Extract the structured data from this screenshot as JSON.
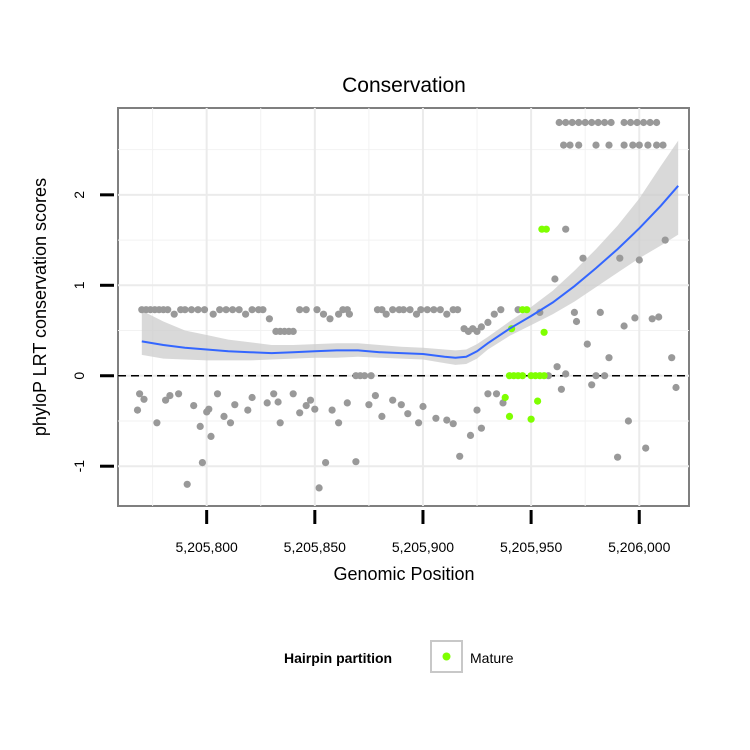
{
  "chart_data": {
    "type": "scatter",
    "title": "Conservation",
    "xlabel": "Genomic Position",
    "ylabel": "phyloP LRT conservation scores",
    "xlim": [
      5205759,
      5206023
    ],
    "ylim": [
      -1.44,
      2.96
    ],
    "x_ticks": [
      5205800,
      5205850,
      5205900,
      5205950,
      5206000
    ],
    "x_tick_labels": [
      "5,205,800",
      "5,205,850",
      "5,205,900",
      "5,205,950",
      "5,206,000"
    ],
    "y_ticks": [
      -1,
      0,
      1,
      2
    ],
    "y_tick_labels": [
      "-1",
      "0",
      "1",
      "2"
    ],
    "grid": true,
    "reference_line": {
      "y": 0,
      "style": "dashed"
    },
    "legend": {
      "title": "Hairpin partition",
      "placement": "bottom",
      "entries": [
        {
          "label": "Mature",
          "color": "#7FFF00"
        }
      ]
    },
    "colors": {
      "other": "#999999",
      "mature": "#7FFF00",
      "smooth": "#3366FF",
      "band": "#cccccc"
    },
    "series": [
      {
        "role": "other",
        "points": [
          [
            5205770,
            0.73
          ],
          [
            5205772,
            0.73
          ],
          [
            5205774,
            0.73
          ],
          [
            5205776,
            0.73
          ],
          [
            5205778,
            0.73
          ],
          [
            5205780,
            0.73
          ],
          [
            5205782,
            0.73
          ],
          [
            5205785,
            0.68
          ],
          [
            5205788,
            0.73
          ],
          [
            5205790,
            0.73
          ],
          [
            5205793,
            0.73
          ],
          [
            5205796,
            0.73
          ],
          [
            5205799,
            0.73
          ],
          [
            5205803,
            0.68
          ],
          [
            5205806,
            0.73
          ],
          [
            5205809,
            0.73
          ],
          [
            5205812,
            0.73
          ],
          [
            5205815,
            0.73
          ],
          [
            5205818,
            0.68
          ],
          [
            5205821,
            0.73
          ],
          [
            5205824,
            0.73
          ],
          [
            5205826,
            0.73
          ],
          [
            5205829,
            0.63
          ],
          [
            5205832,
            0.49
          ],
          [
            5205834,
            0.49
          ],
          [
            5205836,
            0.49
          ],
          [
            5205838,
            0.49
          ],
          [
            5205840,
            0.49
          ],
          [
            5205843,
            0.73
          ],
          [
            5205846,
            0.73
          ],
          [
            5205851,
            0.73
          ],
          [
            5205854,
            0.68
          ],
          [
            5205857,
            0.63
          ],
          [
            5205861,
            0.68
          ],
          [
            5205863,
            0.73
          ],
          [
            5205865,
            0.73
          ],
          [
            5205866,
            0.68
          ],
          [
            5205869,
            0.0
          ],
          [
            5205871,
            0.0
          ],
          [
            5205873,
            0.0
          ],
          [
            5205876,
            0.0
          ],
          [
            5205879,
            0.73
          ],
          [
            5205881,
            0.73
          ],
          [
            5205883,
            0.68
          ],
          [
            5205886,
            0.73
          ],
          [
            5205889,
            0.73
          ],
          [
            5205891,
            0.73
          ],
          [
            5205894,
            0.73
          ],
          [
            5205897,
            0.68
          ],
          [
            5205899,
            0.73
          ],
          [
            5205902,
            0.73
          ],
          [
            5205905,
            0.73
          ],
          [
            5205908,
            0.73
          ],
          [
            5205911,
            0.68
          ],
          [
            5205914,
            0.73
          ],
          [
            5205916,
            0.73
          ],
          [
            5205919,
            0.52
          ],
          [
            5205921,
            0.49
          ],
          [
            5205923,
            0.52
          ],
          [
            5205925,
            0.49
          ],
          [
            5205927,
            0.54
          ],
          [
            5205930,
            0.59
          ],
          [
            5205933,
            0.68
          ],
          [
            5205936,
            0.73
          ],
          [
            5205944,
            0.73
          ],
          [
            5205954,
            0.7
          ],
          [
            5205961,
            1.07
          ],
          [
            5205966,
            1.62
          ],
          [
            5205970,
            0.7
          ],
          [
            5205769,
            -0.2
          ],
          [
            5205771,
            -0.26
          ],
          [
            5205768,
            -0.38
          ],
          [
            5205777,
            -0.52
          ],
          [
            5205781,
            -0.27
          ],
          [
            5205783,
            -0.22
          ],
          [
            5205787,
            -0.2
          ],
          [
            5205791,
            -1.2
          ],
          [
            5205794,
            -0.33
          ],
          [
            5205797,
            -0.56
          ],
          [
            5205798,
            -0.96
          ],
          [
            5205800,
            -0.4
          ],
          [
            5205801,
            -0.37
          ],
          [
            5205802,
            -0.67
          ],
          [
            5205805,
            -0.2
          ],
          [
            5205808,
            -0.45
          ],
          [
            5205811,
            -0.52
          ],
          [
            5205813,
            -0.32
          ],
          [
            5205819,
            -0.38
          ],
          [
            5205821,
            -0.24
          ],
          [
            5205828,
            -0.3
          ],
          [
            5205831,
            -0.2
          ],
          [
            5205833,
            -0.29
          ],
          [
            5205834,
            -0.52
          ],
          [
            5205840,
            -0.2
          ],
          [
            5205843,
            -0.41
          ],
          [
            5205846,
            -0.33
          ],
          [
            5205848,
            -0.27
          ],
          [
            5205850,
            -0.37
          ],
          [
            5205852,
            -1.24
          ],
          [
            5205855,
            -0.96
          ],
          [
            5205858,
            -0.38
          ],
          [
            5205861,
            -0.52
          ],
          [
            5205865,
            -0.3
          ],
          [
            5205869,
            -0.95
          ],
          [
            5205875,
            -0.32
          ],
          [
            5205878,
            -0.22
          ],
          [
            5205881,
            -0.45
          ],
          [
            5205886,
            -0.27
          ],
          [
            5205890,
            -0.32
          ],
          [
            5205893,
            -0.42
          ],
          [
            5205898,
            -0.52
          ],
          [
            5205900,
            -0.34
          ],
          [
            5205906,
            -0.47
          ],
          [
            5205911,
            -0.49
          ],
          [
            5205914,
            -0.53
          ],
          [
            5205917,
            -0.89
          ],
          [
            5205922,
            -0.66
          ],
          [
            5205925,
            -0.38
          ],
          [
            5205927,
            -0.58
          ],
          [
            5205930,
            -0.2
          ],
          [
            5205934,
            -0.2
          ],
          [
            5205937,
            -0.3
          ],
          [
            5205958,
            0.0
          ],
          [
            5205962,
            0.1
          ],
          [
            5205964,
            -0.15
          ],
          [
            5205966,
            0.02
          ],
          [
            5205971,
            0.6
          ],
          [
            5205974,
            1.3
          ],
          [
            5205976,
            0.35
          ],
          [
            5205978,
            -0.1
          ],
          [
            5205980,
            0.0
          ],
          [
            5205982,
            0.7
          ],
          [
            5205984,
            0.0
          ],
          [
            5205986,
            0.2
          ],
          [
            5205990,
            -0.9
          ],
          [
            5205991,
            1.3
          ],
          [
            5205993,
            0.55
          ],
          [
            5205995,
            -0.5
          ],
          [
            5205998,
            0.64
          ],
          [
            5206000,
            1.28
          ],
          [
            5206003,
            -0.8
          ],
          [
            5206006,
            0.63
          ],
          [
            5206009,
            0.65
          ],
          [
            5206012,
            1.5
          ],
          [
            5206015,
            0.2
          ],
          [
            5206017,
            -0.13
          ],
          [
            5205963,
            2.8
          ],
          [
            5205966,
            2.8
          ],
          [
            5205969,
            2.8
          ],
          [
            5205972,
            2.8
          ],
          [
            5205975,
            2.8
          ],
          [
            5205978,
            2.8
          ],
          [
            5205981,
            2.8
          ],
          [
            5205984,
            2.8
          ],
          [
            5205987,
            2.8
          ],
          [
            5205993,
            2.8
          ],
          [
            5205996,
            2.8
          ],
          [
            5205999,
            2.8
          ],
          [
            5206002,
            2.8
          ],
          [
            5206005,
            2.8
          ],
          [
            5206008,
            2.8
          ],
          [
            5205965,
            2.55
          ],
          [
            5205968,
            2.55
          ],
          [
            5205972,
            2.55
          ],
          [
            5205980,
            2.55
          ],
          [
            5205986,
            2.55
          ],
          [
            5205993,
            2.55
          ],
          [
            5205997,
            2.55
          ],
          [
            5206000,
            2.55
          ],
          [
            5206004,
            2.55
          ],
          [
            5206008,
            2.55
          ],
          [
            5206011,
            2.55
          ]
        ]
      },
      {
        "role": "mature",
        "name": "Mature",
        "points": [
          [
            5205940,
            0.0
          ],
          [
            5205942,
            0.0
          ],
          [
            5205944,
            0.0
          ],
          [
            5205946,
            0.0
          ],
          [
            5205950,
            0.0
          ],
          [
            5205952,
            0.0
          ],
          [
            5205954,
            0.0
          ],
          [
            5205956,
            0.0
          ],
          [
            5205938,
            -0.24
          ],
          [
            5205940,
            -0.45
          ],
          [
            5205941,
            0.52
          ],
          [
            5205946,
            0.73
          ],
          [
            5205948,
            0.73
          ],
          [
            5205950,
            -0.48
          ],
          [
            5205953,
            -0.28
          ],
          [
            5205956,
            0.48
          ],
          [
            5205955,
            1.62
          ],
          [
            5205957,
            1.62
          ]
        ]
      }
    ],
    "smooth": {
      "x": [
        5205770,
        5205780,
        5205790,
        5205800,
        5205810,
        5205820,
        5205830,
        5205840,
        5205850,
        5205860,
        5205870,
        5205880,
        5205890,
        5205900,
        5205910,
        5205915,
        5205920,
        5205925,
        5205930,
        5205940,
        5205950,
        5205960,
        5205970,
        5205980,
        5205990,
        5206000,
        5206010,
        5206018
      ],
      "y": [
        0.38,
        0.34,
        0.31,
        0.29,
        0.27,
        0.26,
        0.25,
        0.26,
        0.27,
        0.28,
        0.28,
        0.26,
        0.25,
        0.24,
        0.21,
        0.2,
        0.21,
        0.27,
        0.36,
        0.52,
        0.66,
        0.81,
        0.99,
        1.19,
        1.4,
        1.63,
        1.88,
        2.1
      ],
      "lower": [
        0.23,
        0.19,
        0.18,
        0.17,
        0.17,
        0.17,
        0.18,
        0.19,
        0.2,
        0.2,
        0.21,
        0.2,
        0.19,
        0.18,
        0.14,
        0.12,
        0.13,
        0.19,
        0.29,
        0.44,
        0.56,
        0.68,
        0.82,
        0.98,
        1.14,
        1.3,
        1.44,
        1.56
      ],
      "upper": [
        0.72,
        0.6,
        0.5,
        0.45,
        0.4,
        0.37,
        0.34,
        0.34,
        0.35,
        0.36,
        0.36,
        0.34,
        0.32,
        0.31,
        0.29,
        0.28,
        0.29,
        0.35,
        0.43,
        0.6,
        0.76,
        0.94,
        1.16,
        1.4,
        1.66,
        1.96,
        2.32,
        2.6
      ]
    }
  }
}
